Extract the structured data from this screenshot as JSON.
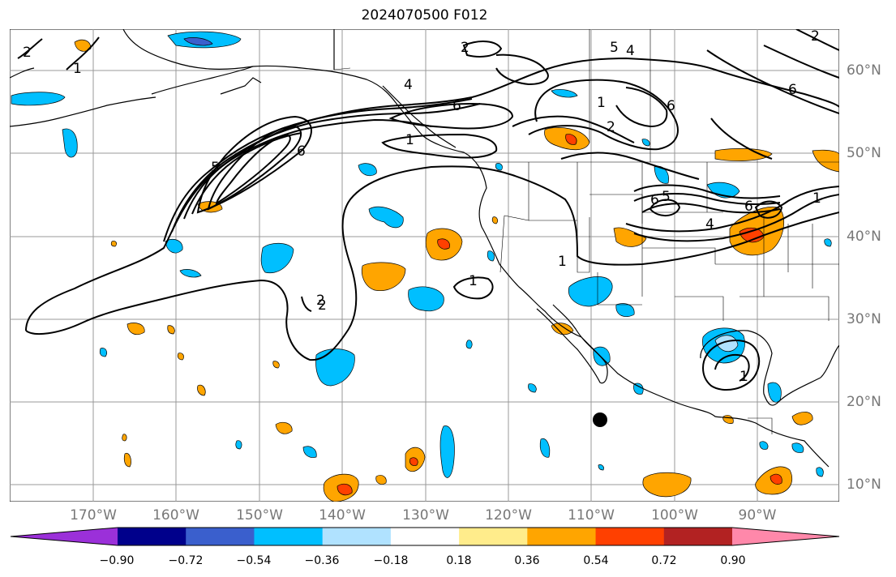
{
  "title": "2024070500 F012",
  "map": {
    "lon_labels": [
      "170°W",
      "160°W",
      "150°W",
      "140°W",
      "130°W",
      "120°W",
      "110°W",
      "100°W",
      "90°W"
    ],
    "lat_labels": [
      "60°N",
      "50°N",
      "40°N",
      "30°N",
      "20°N",
      "10°N"
    ],
    "contour_labels": [
      "2",
      "1",
      "4",
      "6",
      "5",
      "6",
      "1",
      "2",
      "6",
      "2",
      "4",
      "5",
      "1",
      "6",
      "2",
      "1",
      "6",
      "5",
      "6",
      "4",
      "1",
      "1",
      "2",
      "2",
      "1"
    ],
    "colors": {
      "contour": "#000000",
      "grid": "#999999",
      "land_outline": "#000000"
    }
  },
  "colorbar": {
    "tick_labels": [
      "−0.90",
      "−0.72",
      "−0.54",
      "−0.36",
      "−0.18",
      "0.18",
      "0.36",
      "0.54",
      "0.72",
      "0.90"
    ],
    "colors": [
      "#9b30d9",
      "#00008b",
      "#3a5fcd",
      "#00bfff",
      "#b0e2ff",
      "#ffffff",
      "#ffec8b",
      "#ffa500",
      "#ff4000",
      "#b22222",
      "#ff88aa"
    ]
  }
}
